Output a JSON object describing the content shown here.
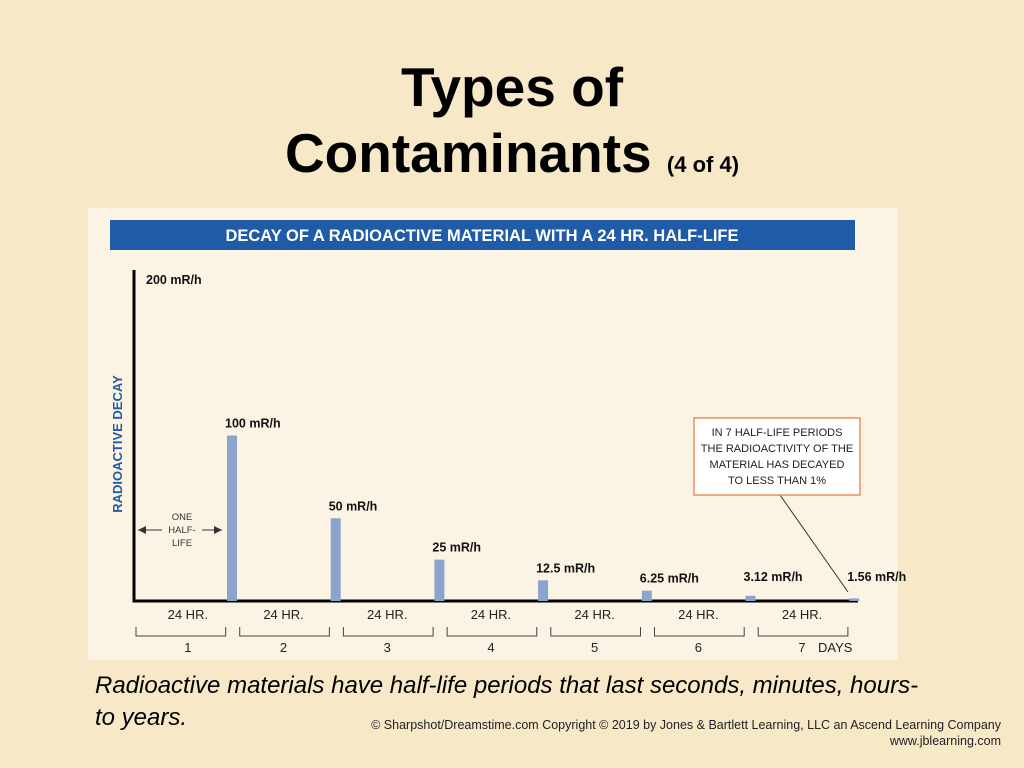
{
  "slide": {
    "title_line1": "Types of",
    "title_line2": "Contaminants",
    "title_suffix": "(4 of 4)",
    "caption": "Radioactive materials have half-life periods that last seconds, minutes, hours- to years.",
    "credit_line1": "© Sharpshot/Dreamstime.com Copyright © 2019 by Jones & Bartlett Learning, LLC an Ascend Learning Company",
    "credit_line2": "www.jblearning.com"
  },
  "colors": {
    "background": "#f7e9c8",
    "figure_background": "#fbf4e4",
    "header_bar": "#1f5ba7",
    "bar": "#8aa3cf",
    "callout_border": "#e8905a",
    "axis": "#000000"
  },
  "chart_data": {
    "type": "bar",
    "title": "DECAY OF A RADIOACTIVE MATERIAL WITH A 24 HR. HALF-LIFE",
    "ylabel": "RADIOACTIVE DECAY",
    "ylim": [
      0,
      200
    ],
    "initial_label": "200 mR/h",
    "initial_value": 200,
    "values": [
      100,
      50,
      25,
      12.5,
      6.25,
      3.12,
      1.56
    ],
    "value_labels": [
      "100 mR/h",
      "50 mR/h",
      "25 mR/h",
      "12.5 mR/h",
      "6.25 mR/h",
      "3.12 mR/h",
      "1.56 mR/h"
    ],
    "period_labels": [
      "24 HR.",
      "24 HR.",
      "24 HR.",
      "24 HR.",
      "24 HR.",
      "24 HR.",
      "24 HR."
    ],
    "day_labels": [
      "1",
      "2",
      "3",
      "4",
      "5",
      "6",
      "7"
    ],
    "days_label": "DAYS",
    "half_life_annotation": [
      "ONE",
      "HALF-",
      "LIFE"
    ],
    "callout_lines": [
      "IN 7 HALF-LIFE PERIODS",
      "THE RADIOACTIVITY OF THE",
      "MATERIAL HAS DECAYED",
      "TO LESS THAN 1%"
    ]
  }
}
